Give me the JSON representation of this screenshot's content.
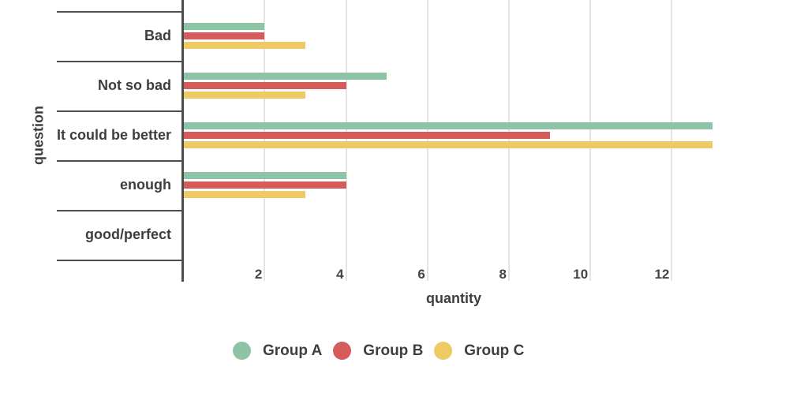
{
  "chart_data": {
    "type": "bar",
    "orientation": "horizontal",
    "title": "",
    "xlabel": "quantity",
    "ylabel": "question",
    "categories": [
      "Bad",
      "Not so bad",
      "It could be better",
      "enough",
      "good/perfect"
    ],
    "series": [
      {
        "name": "Group A",
        "color": "#8ec4a6",
        "values": [
          2,
          5,
          13,
          4,
          0
        ]
      },
      {
        "name": "Group B",
        "color": "#d65b5b",
        "values": [
          2,
          4,
          9,
          4,
          0
        ]
      },
      {
        "name": "Group C",
        "color": "#edca64",
        "values": [
          3,
          3,
          13,
          3,
          0
        ]
      }
    ],
    "x_ticks": [
      2,
      4,
      6,
      8,
      10,
      12
    ],
    "xlim": [
      0,
      15.3
    ],
    "grid": "vertical-only",
    "legend_position": "bottom-center",
    "background_color": "#ffffff",
    "axis_color": "#4d4d4d",
    "gridline_color": "#e4e4e4",
    "text_color": "#3e3e3e"
  }
}
